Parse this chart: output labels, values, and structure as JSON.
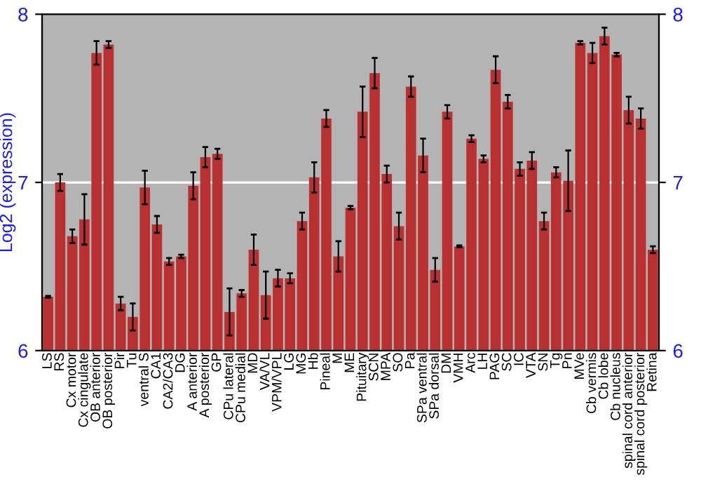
{
  "chart_data": {
    "type": "bar",
    "ylabel": "Log2 (expression)",
    "categories": [
      "LS",
      "RS",
      "Cx motor",
      "Cx cingulate",
      "OB anterior",
      "OB posterior",
      "Pir",
      "Tu",
      "ventral S",
      "CA1",
      "CA2/CA3",
      "DG",
      "A anterior",
      "A posterior",
      "GP",
      "CPu lateral",
      "CPu medial",
      "MD",
      "VA/VL",
      "VPM/VPL",
      "LG",
      "MG",
      "Hb",
      "Pineal",
      "M",
      "ME",
      "Pituitary",
      "SCN",
      "MPA",
      "SO",
      "Pa",
      "SPa ventral",
      "SPa dorsal",
      "DM",
      "VMH",
      "Arc",
      "LH",
      "PAG",
      "SC",
      "IC",
      "VTA",
      "SN",
      "Tg",
      "Pn",
      "MVe",
      "Cb vermis",
      "Cb lobe",
      "Cb nucleus",
      "spinal cord anterior",
      "spinal cord posterior",
      "Retina"
    ],
    "values": [
      6.32,
      7.0,
      6.68,
      6.78,
      7.77,
      7.82,
      6.28,
      6.2,
      6.97,
      6.75,
      6.53,
      6.56,
      6.98,
      7.15,
      7.17,
      6.23,
      6.34,
      6.6,
      6.33,
      6.43,
      6.43,
      6.77,
      7.03,
      7.38,
      6.56,
      6.85,
      7.42,
      7.65,
      7.05,
      6.74,
      7.57,
      7.16,
      6.48,
      7.42,
      6.62,
      7.26,
      7.14,
      7.67,
      7.48,
      7.08,
      7.13,
      6.77,
      7.06,
      7.01,
      7.83,
      7.77,
      7.87,
      7.76,
      7.43,
      7.38,
      6.6
    ],
    "errors": [
      0.005,
      0.05,
      0.04,
      0.15,
      0.07,
      0.02,
      0.04,
      0.08,
      0.1,
      0.05,
      0.02,
      0.01,
      0.08,
      0.06,
      0.03,
      0.14,
      0.02,
      0.09,
      0.14,
      0.05,
      0.03,
      0.05,
      0.09,
      0.05,
      0.09,
      0.01,
      0.15,
      0.09,
      0.05,
      0.08,
      0.06,
      0.1,
      0.07,
      0.04,
      0.005,
      0.02,
      0.02,
      0.08,
      0.04,
      0.04,
      0.05,
      0.05,
      0.03,
      0.18,
      0.01,
      0.06,
      0.05,
      0.01,
      0.08,
      0.06,
      0.02
    ],
    "color": "#b83030",
    "ylim": [
      6,
      8
    ],
    "yticks": [
      6,
      7,
      8
    ],
    "y2lim": [
      6,
      8
    ],
    "y2ticks": [
      6,
      7,
      8
    ],
    "grid": "y",
    "legend": false
  }
}
